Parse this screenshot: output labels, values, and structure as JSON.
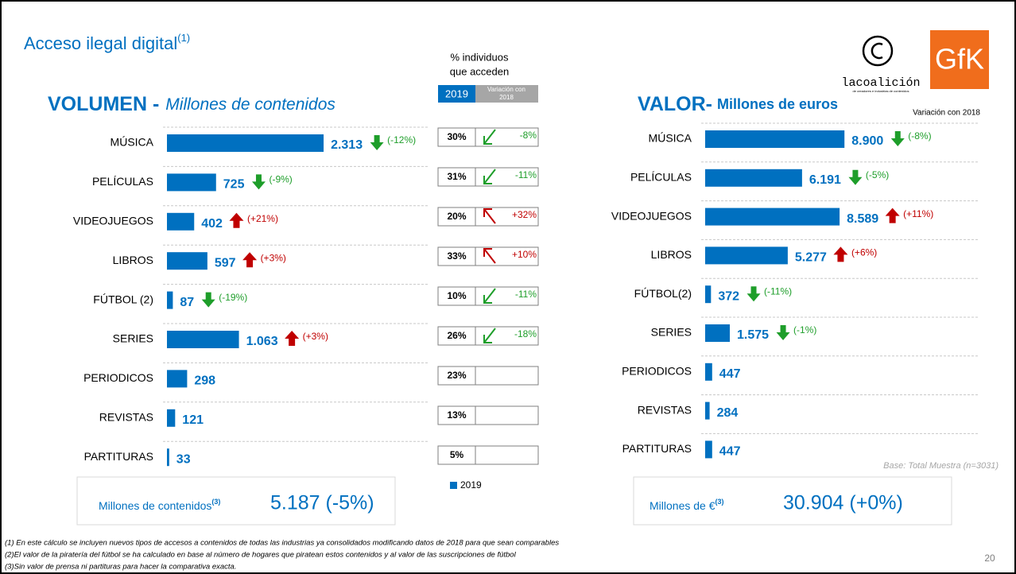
{
  "title": "Acceso ilegal digital",
  "title_note": "(1)",
  "chart_data": [
    {
      "type": "bar",
      "orientation": "horizontal",
      "title": "VOLUMEN -",
      "subtitle": "Millones de contenidos",
      "categories": [
        "MÚSICA",
        "PELÍCULAS",
        "VIDEOJUEGOS",
        "LIBROS",
        "FÚTBOL (2)",
        "SERIES",
        "PERIODICOS",
        "REVISTAS",
        "PARTITURAS"
      ],
      "values": [
        2313,
        725,
        402,
        597,
        87,
        1063,
        298,
        121,
        33
      ],
      "value_labels": [
        "2.313",
        "725",
        "402",
        "597",
        "87",
        "1.063",
        "298",
        "121",
        "33"
      ],
      "changes": [
        -12,
        -9,
        21,
        3,
        -19,
        3,
        null,
        null,
        null
      ],
      "change_labels": [
        "(-12%)",
        "(-9%)",
        "(+21%)",
        "(+3%)",
        "(-19%)",
        "(+3%)",
        null,
        null,
        null
      ],
      "color": "#0070c0",
      "xlim": [
        0,
        2500
      ],
      "total_label": "Millones de contenidos",
      "total_note": "(3)",
      "total": "5.187 (-5%)"
    },
    {
      "type": "bar",
      "orientation": "horizontal",
      "title": "VALOR-",
      "subtitle": "Millones de euros",
      "change_header": "Variación con 2018",
      "categories": [
        "MÚSICA",
        "PELÍCULAS",
        "VIDEOJUEGOS",
        "LIBROS",
        "FÚTBOL(2)",
        "SERIES",
        "PERIODICOS",
        "REVISTAS",
        "PARTITURAS"
      ],
      "values": [
        8900,
        6191,
        8589,
        5277,
        372,
        1575,
        447,
        284,
        447
      ],
      "value_labels": [
        "8.900",
        "6.191",
        "8.589",
        "5.277",
        "372",
        "1.575",
        "447",
        "284",
        "447"
      ],
      "changes": [
        -8,
        -5,
        11,
        6,
        -11,
        -1,
        null,
        null,
        null
      ],
      "change_labels": [
        "(-8%)",
        "(-5%)",
        "(+11%)",
        "(+6%)",
        "(-11%)",
        "(-1%)",
        null,
        null,
        null
      ],
      "color": "#0070c0",
      "xlim": [
        0,
        9600
      ],
      "total_label": "Millones de €",
      "total_note": "(3)",
      "total": "30.904 (+0%)",
      "base": "Base: Total Muestra (n=3031)"
    }
  ],
  "access": {
    "title": [
      "% individuos",
      "que acceden"
    ],
    "year": "2019",
    "variation_header": [
      "Variación con",
      "2018"
    ],
    "values": [
      30,
      31,
      20,
      33,
      10,
      26,
      23,
      13,
      5
    ],
    "value_labels": [
      "30%",
      "31%",
      "20%",
      "33%",
      "10%",
      "26%",
      "23%",
      "13%",
      "5%"
    ],
    "variations": [
      -8,
      -11,
      32,
      10,
      -11,
      -18,
      null,
      null,
      null
    ],
    "variation_labels": [
      "-8%",
      "-11%",
      "+32%",
      "+10%",
      "-11%",
      "-18%",
      null,
      null,
      null
    ],
    "legend": "2019"
  },
  "logos": {
    "coalition": "lacoalición",
    "coalition_tagline": "de creadores e industrias de contenidos",
    "gfk": "GfK"
  },
  "footnotes": [
    "(1) En este cálculo se incluyen nuevos tipos de accesos a contenidos de todas las industrias ya consolidados modificando datos de 2018 para que sean comparables",
    "(2)El valor de la piratería del fútbol se ha calculado en base al número de hogares que piratean estos contenidos y al valor de las suscripciones de fútbol",
    "(3)Sin valor de prensa ni partituras para hacer la comparativa exacta."
  ],
  "page_number": "20"
}
